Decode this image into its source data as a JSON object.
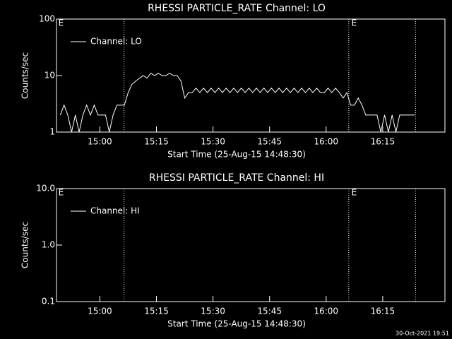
{
  "chart_data": [
    {
      "type": "line",
      "title": "RHESSI PARTICLE_RATE Channel: LO",
      "xlabel": "Start Time (25-Aug-15 14:48:30)",
      "ylabel": "Counts/sec",
      "log_y": true,
      "legend": "upper left",
      "xlim": [
        0,
        103
      ],
      "xticks": [
        {
          "value": 11.5,
          "label": "15:00"
        },
        {
          "value": 26.5,
          "label": "15:15"
        },
        {
          "value": 41.5,
          "label": "15:30"
        },
        {
          "value": 56.5,
          "label": "15:45"
        },
        {
          "value": 71.5,
          "label": "16:00"
        },
        {
          "value": 86.5,
          "label": "16:15"
        }
      ],
      "ylim": [
        1,
        100
      ],
      "yticks": [
        1,
        10,
        100
      ],
      "markers": [
        17.9,
        77.5,
        95.2
      ],
      "annotations": [
        {
          "text": "E",
          "x": 0.5
        },
        {
          "text": "E",
          "x": 78.2
        }
      ],
      "series": [
        {
          "name": "Channel: LO",
          "color": "#ffffff",
          "x": [
            1,
            2,
            3,
            4,
            5,
            6,
            7,
            8,
            9,
            10,
            11,
            12,
            13,
            14,
            15,
            16,
            17,
            18,
            19,
            20,
            21,
            22,
            23,
            24,
            25,
            26,
            27,
            28,
            29,
            30,
            31,
            32,
            33,
            34,
            35,
            36,
            37,
            38,
            39,
            40,
            41,
            42,
            43,
            44,
            45,
            46,
            47,
            48,
            49,
            50,
            51,
            52,
            53,
            54,
            55,
            56,
            57,
            58,
            59,
            60,
            61,
            62,
            63,
            64,
            65,
            66,
            67,
            68,
            69,
            70,
            71,
            72,
            73,
            74,
            75,
            76,
            77,
            78,
            79,
            80,
            81,
            82,
            83,
            84,
            85,
            86,
            87,
            88,
            89,
            90,
            91,
            92,
            93,
            94,
            95
          ],
          "values": [
            2,
            3,
            2,
            1,
            2,
            1,
            2,
            3,
            2,
            3,
            2,
            2,
            2,
            1,
            2,
            3,
            3,
            3,
            5,
            7,
            8,
            9,
            10,
            9,
            11,
            10,
            11,
            10,
            10,
            11,
            10,
            10,
            8,
            4,
            5,
            5,
            6,
            5,
            6,
            5,
            6,
            5,
            6,
            5,
            6,
            5,
            6,
            5,
            6,
            5,
            6,
            5,
            6,
            5,
            6,
            5,
            6,
            5,
            6,
            5,
            6,
            5,
            6,
            5,
            6,
            5,
            6,
            5,
            6,
            5,
            5,
            6,
            5,
            6,
            5,
            4,
            5,
            3,
            3,
            4,
            3,
            2,
            2,
            2,
            2,
            1,
            2,
            1,
            2,
            1,
            2,
            2,
            2,
            2,
            2
          ]
        }
      ]
    },
    {
      "type": "line",
      "title": "RHESSI PARTICLE_RATE Channel: HI",
      "xlabel": "Start Time (25-Aug-15 14:48:30)",
      "ylabel": "Counts/sec",
      "log_y": true,
      "legend": "upper left",
      "xlim": [
        0,
        103
      ],
      "xticks": [
        {
          "value": 11.5,
          "label": "15:00"
        },
        {
          "value": 26.5,
          "label": "15:15"
        },
        {
          "value": 41.5,
          "label": "15:30"
        },
        {
          "value": 56.5,
          "label": "15:45"
        },
        {
          "value": 71.5,
          "label": "16:00"
        },
        {
          "value": 86.5,
          "label": "16:15"
        }
      ],
      "ylim": [
        0.1,
        10
      ],
      "yticks": [
        0.1,
        {
          "value": 1,
          "label": "1.0"
        },
        {
          "value": 10,
          "label": "10.0"
        }
      ],
      "markers": [
        17.9,
        77.5,
        95.2
      ],
      "annotations": [
        {
          "text": "E",
          "x": 0.5
        },
        {
          "text": "E",
          "x": 78.2
        }
      ],
      "series": [
        {
          "name": "Channel: HI",
          "color": "#ffffff",
          "x": [],
          "values": []
        }
      ]
    }
  ],
  "footer": "30-Oct-2021 19:51"
}
